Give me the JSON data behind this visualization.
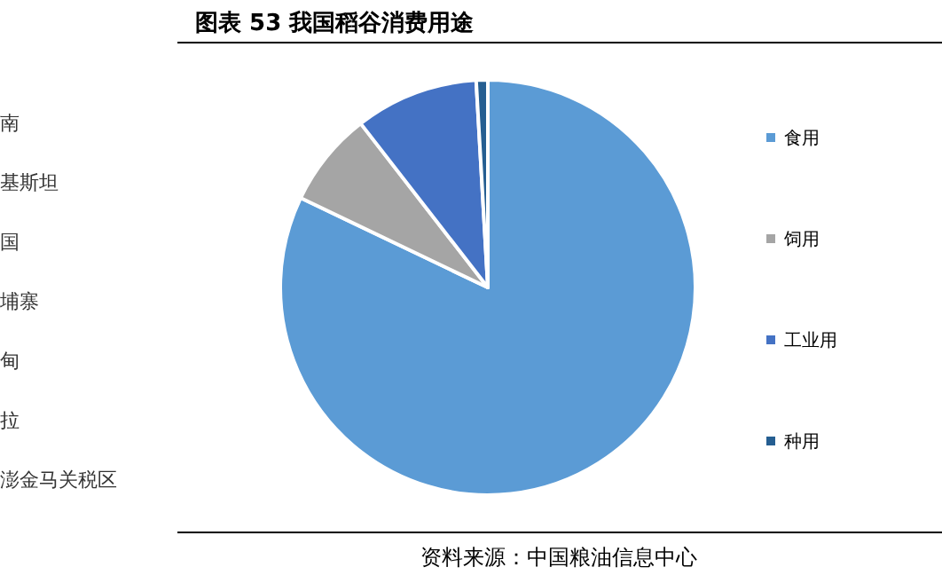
{
  "chart_data": {
    "type": "pie",
    "title": "图表 53 我国稻谷消费用途",
    "categories": [
      "食用",
      "饲用",
      "工业用",
      "种用"
    ],
    "values": [
      82.1,
      7.4,
      9.6,
      0.9
    ],
    "colors": [
      "#5b9bd5",
      "#a5a5a5",
      "#4472c4",
      "#255e91"
    ],
    "legend": "right",
    "annotations": [
      "南",
      "基斯坦",
      "国",
      "埔寨",
      "甸",
      "拉",
      "澎金马关税区",
      "资料来源：中国粮油信息中心"
    ]
  }
}
